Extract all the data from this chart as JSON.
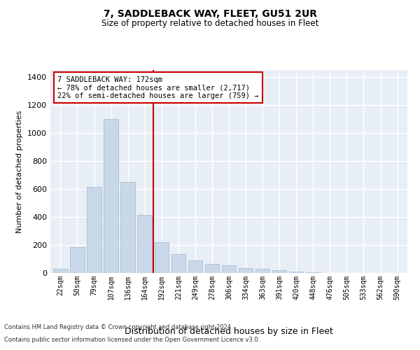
{
  "title": "7, SADDLEBACK WAY, FLEET, GU51 2UR",
  "subtitle": "Size of property relative to detached houses in Fleet",
  "xlabel": "Distribution of detached houses by size in Fleet",
  "ylabel": "Number of detached properties",
  "bar_color": "#c8d8e8",
  "bar_edge_color": "#a0b8d0",
  "bg_color": "#e8eef5",
  "grid_color": "#ffffff",
  "categories": [
    "22sqm",
    "50sqm",
    "79sqm",
    "107sqm",
    "136sqm",
    "164sqm",
    "192sqm",
    "221sqm",
    "249sqm",
    "278sqm",
    "306sqm",
    "334sqm",
    "363sqm",
    "391sqm",
    "420sqm",
    "448sqm",
    "476sqm",
    "505sqm",
    "533sqm",
    "562sqm",
    "590sqm"
  ],
  "values": [
    30,
    185,
    615,
    1100,
    650,
    415,
    220,
    135,
    90,
    65,
    55,
    35,
    30,
    20,
    10,
    5,
    2,
    1,
    1,
    0,
    1
  ],
  "ylim": [
    0,
    1450
  ],
  "yticks": [
    0,
    200,
    400,
    600,
    800,
    1000,
    1200,
    1400
  ],
  "property_line_x": 5.5,
  "annotation_line1": "7 SADDLEBACK WAY: 172sqm",
  "annotation_line2": "← 78% of detached houses are smaller (2,717)",
  "annotation_line3": "22% of semi-detached houses are larger (759) →",
  "annotation_box_color": "#cc0000",
  "footer_line1": "Contains HM Land Registry data © Crown copyright and database right 2024.",
  "footer_line2": "Contains public sector information licensed under the Open Government Licence v3.0."
}
